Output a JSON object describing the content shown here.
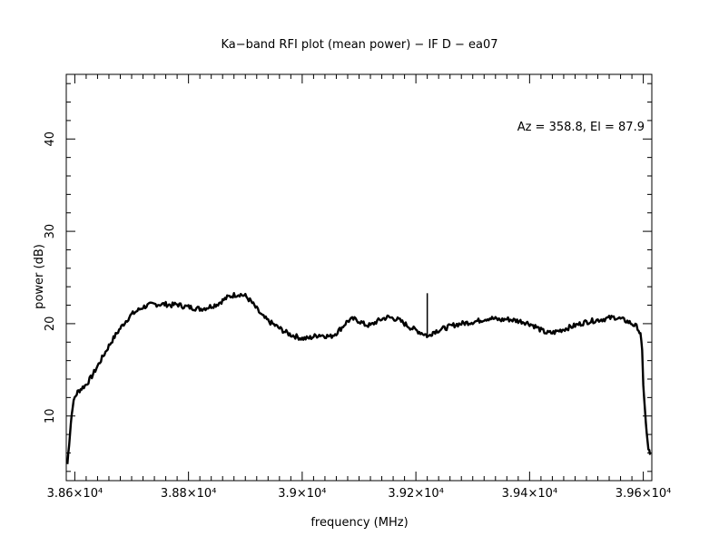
{
  "chart_data": {
    "type": "line",
    "title": "Ka−band RFI plot (mean power) − IF D − ea07",
    "xlabel": "frequency (MHz)",
    "ylabel": "power (dB)",
    "annotation": "Az = 358.8, El = 87.9",
    "xlim": [
      38585,
      39615
    ],
    "ylim": [
      3,
      47
    ],
    "x_ticks": [
      {
        "value": 38600,
        "label": "3.86×10⁴"
      },
      {
        "value": 38800,
        "label": "3.88×10⁴"
      },
      {
        "value": 39000,
        "label": "3.9×10⁴"
      },
      {
        "value": 39200,
        "label": "3.92×10⁴"
      },
      {
        "value": 39400,
        "label": "3.94×10⁴"
      },
      {
        "value": 39600,
        "label": "3.96×10⁴"
      }
    ],
    "y_ticks": [
      {
        "value": 10,
        "label": "10"
      },
      {
        "value": 20,
        "label": "20"
      },
      {
        "value": 30,
        "label": "30"
      },
      {
        "value": 40,
        "label": "40"
      }
    ],
    "grid": false,
    "series": [
      {
        "x": [
          38587,
          38590,
          38593,
          38596,
          38600,
          38605,
          38612,
          38620,
          38630,
          38640,
          38650,
          38660,
          38670,
          38680,
          38690,
          38700,
          38710,
          38720,
          38730,
          38740,
          38750,
          38760,
          38770,
          38780,
          38790,
          38800,
          38810,
          38820,
          38830,
          38840,
          38850,
          38860,
          38870,
          38880,
          38890,
          38900,
          38910,
          38920,
          38930,
          38940,
          38950,
          38960,
          38970,
          38980,
          38990,
          39000,
          39010,
          39020,
          39030,
          39040,
          39050,
          39060,
          39070,
          39080,
          39090,
          39100,
          39110,
          39120,
          39130,
          39140,
          39150,
          39160,
          39170,
          39180,
          39190,
          39200,
          39210,
          39218,
          39221,
          39223,
          39225,
          39227,
          39230,
          39240,
          39250,
          39260,
          39270,
          39280,
          39290,
          39300,
          39310,
          39320,
          39330,
          39340,
          39350,
          39360,
          39370,
          39380,
          39390,
          39400,
          39410,
          39420,
          39430,
          39440,
          39450,
          39460,
          39470,
          39480,
          39490,
          39500,
          39510,
          39520,
          39530,
          39540,
          39550,
          39560,
          39570,
          39580,
          39590,
          39595,
          39598,
          39600,
          39603,
          39606,
          39609,
          39612
        ],
        "y": [
          4.8,
          7.0,
          9.2,
          11.0,
          12.0,
          12.6,
          13.0,
          13.4,
          14.3,
          15.4,
          16.5,
          17.6,
          18.6,
          19.5,
          20.3,
          21.0,
          21.4,
          21.8,
          22.0,
          22.1,
          22.1,
          22.1,
          22.0,
          22.1,
          21.9,
          21.8,
          21.7,
          21.6,
          21.7,
          21.9,
          22.1,
          22.5,
          22.9,
          23.1,
          23.2,
          23.0,
          22.4,
          21.6,
          20.8,
          20.3,
          19.9,
          19.5,
          19.1,
          18.8,
          18.6,
          18.4,
          18.4,
          18.6,
          18.8,
          18.7,
          18.6,
          19.0,
          19.6,
          20.3,
          20.5,
          20.3,
          19.9,
          19.8,
          20.2,
          20.5,
          20.7,
          20.6,
          20.4,
          20.0,
          19.6,
          19.3,
          19.0,
          18.8,
          18.6,
          18.6,
          18.8,
          18.9,
          19.1,
          19.3,
          19.5,
          19.7,
          19.9,
          20.0,
          20.1,
          20.2,
          20.3,
          20.5,
          20.6,
          20.5,
          20.4,
          20.5,
          20.4,
          20.3,
          20.2,
          20.0,
          19.7,
          19.3,
          19.0,
          19.0,
          19.2,
          19.4,
          19.6,
          19.8,
          20.0,
          20.2,
          20.3,
          20.4,
          20.5,
          20.6,
          20.7,
          20.5,
          20.3,
          20.0,
          19.6,
          18.8,
          17.0,
          13.5,
          10.5,
          8.0,
          6.5,
          5.8
        ],
        "spike": {
          "x": 39220,
          "base": 18.6,
          "peak": 23.3
        }
      }
    ]
  }
}
